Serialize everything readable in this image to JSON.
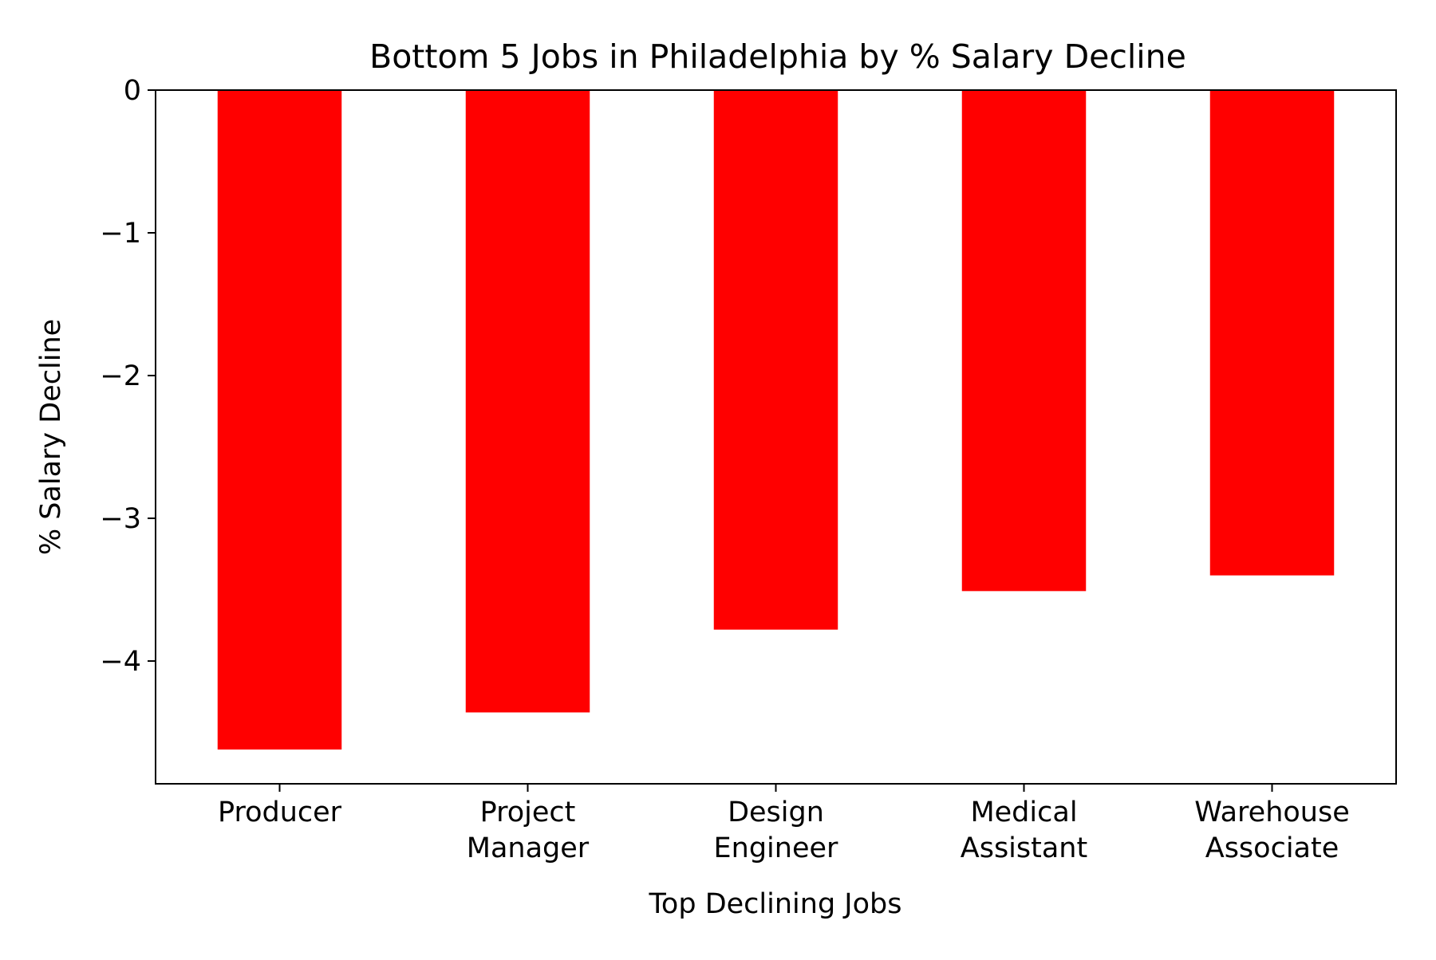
{
  "chart_data": {
    "type": "bar",
    "title": "Bottom 5 Jobs in Philadelphia by % Salary Decline",
    "xlabel": "Top Declining Jobs",
    "ylabel": "% Salary Decline",
    "categories": [
      [
        "Producer"
      ],
      [
        "Project",
        "Manager"
      ],
      [
        "Design",
        "Engineer"
      ],
      [
        "Medical",
        "Assistant"
      ],
      [
        "Warehouse",
        "Associate"
      ]
    ],
    "values": [
      -4.62,
      -4.36,
      -3.78,
      -3.51,
      -3.4
    ],
    "ylim": [
      -4.86,
      0
    ],
    "yticks": [
      0,
      -1,
      -2,
      -3,
      -4
    ],
    "ytick_labels": [
      "0",
      "−1",
      "−2",
      "−3",
      "−4"
    ],
    "bar_color": "#ff0000",
    "grid": false,
    "legend": "none"
  }
}
